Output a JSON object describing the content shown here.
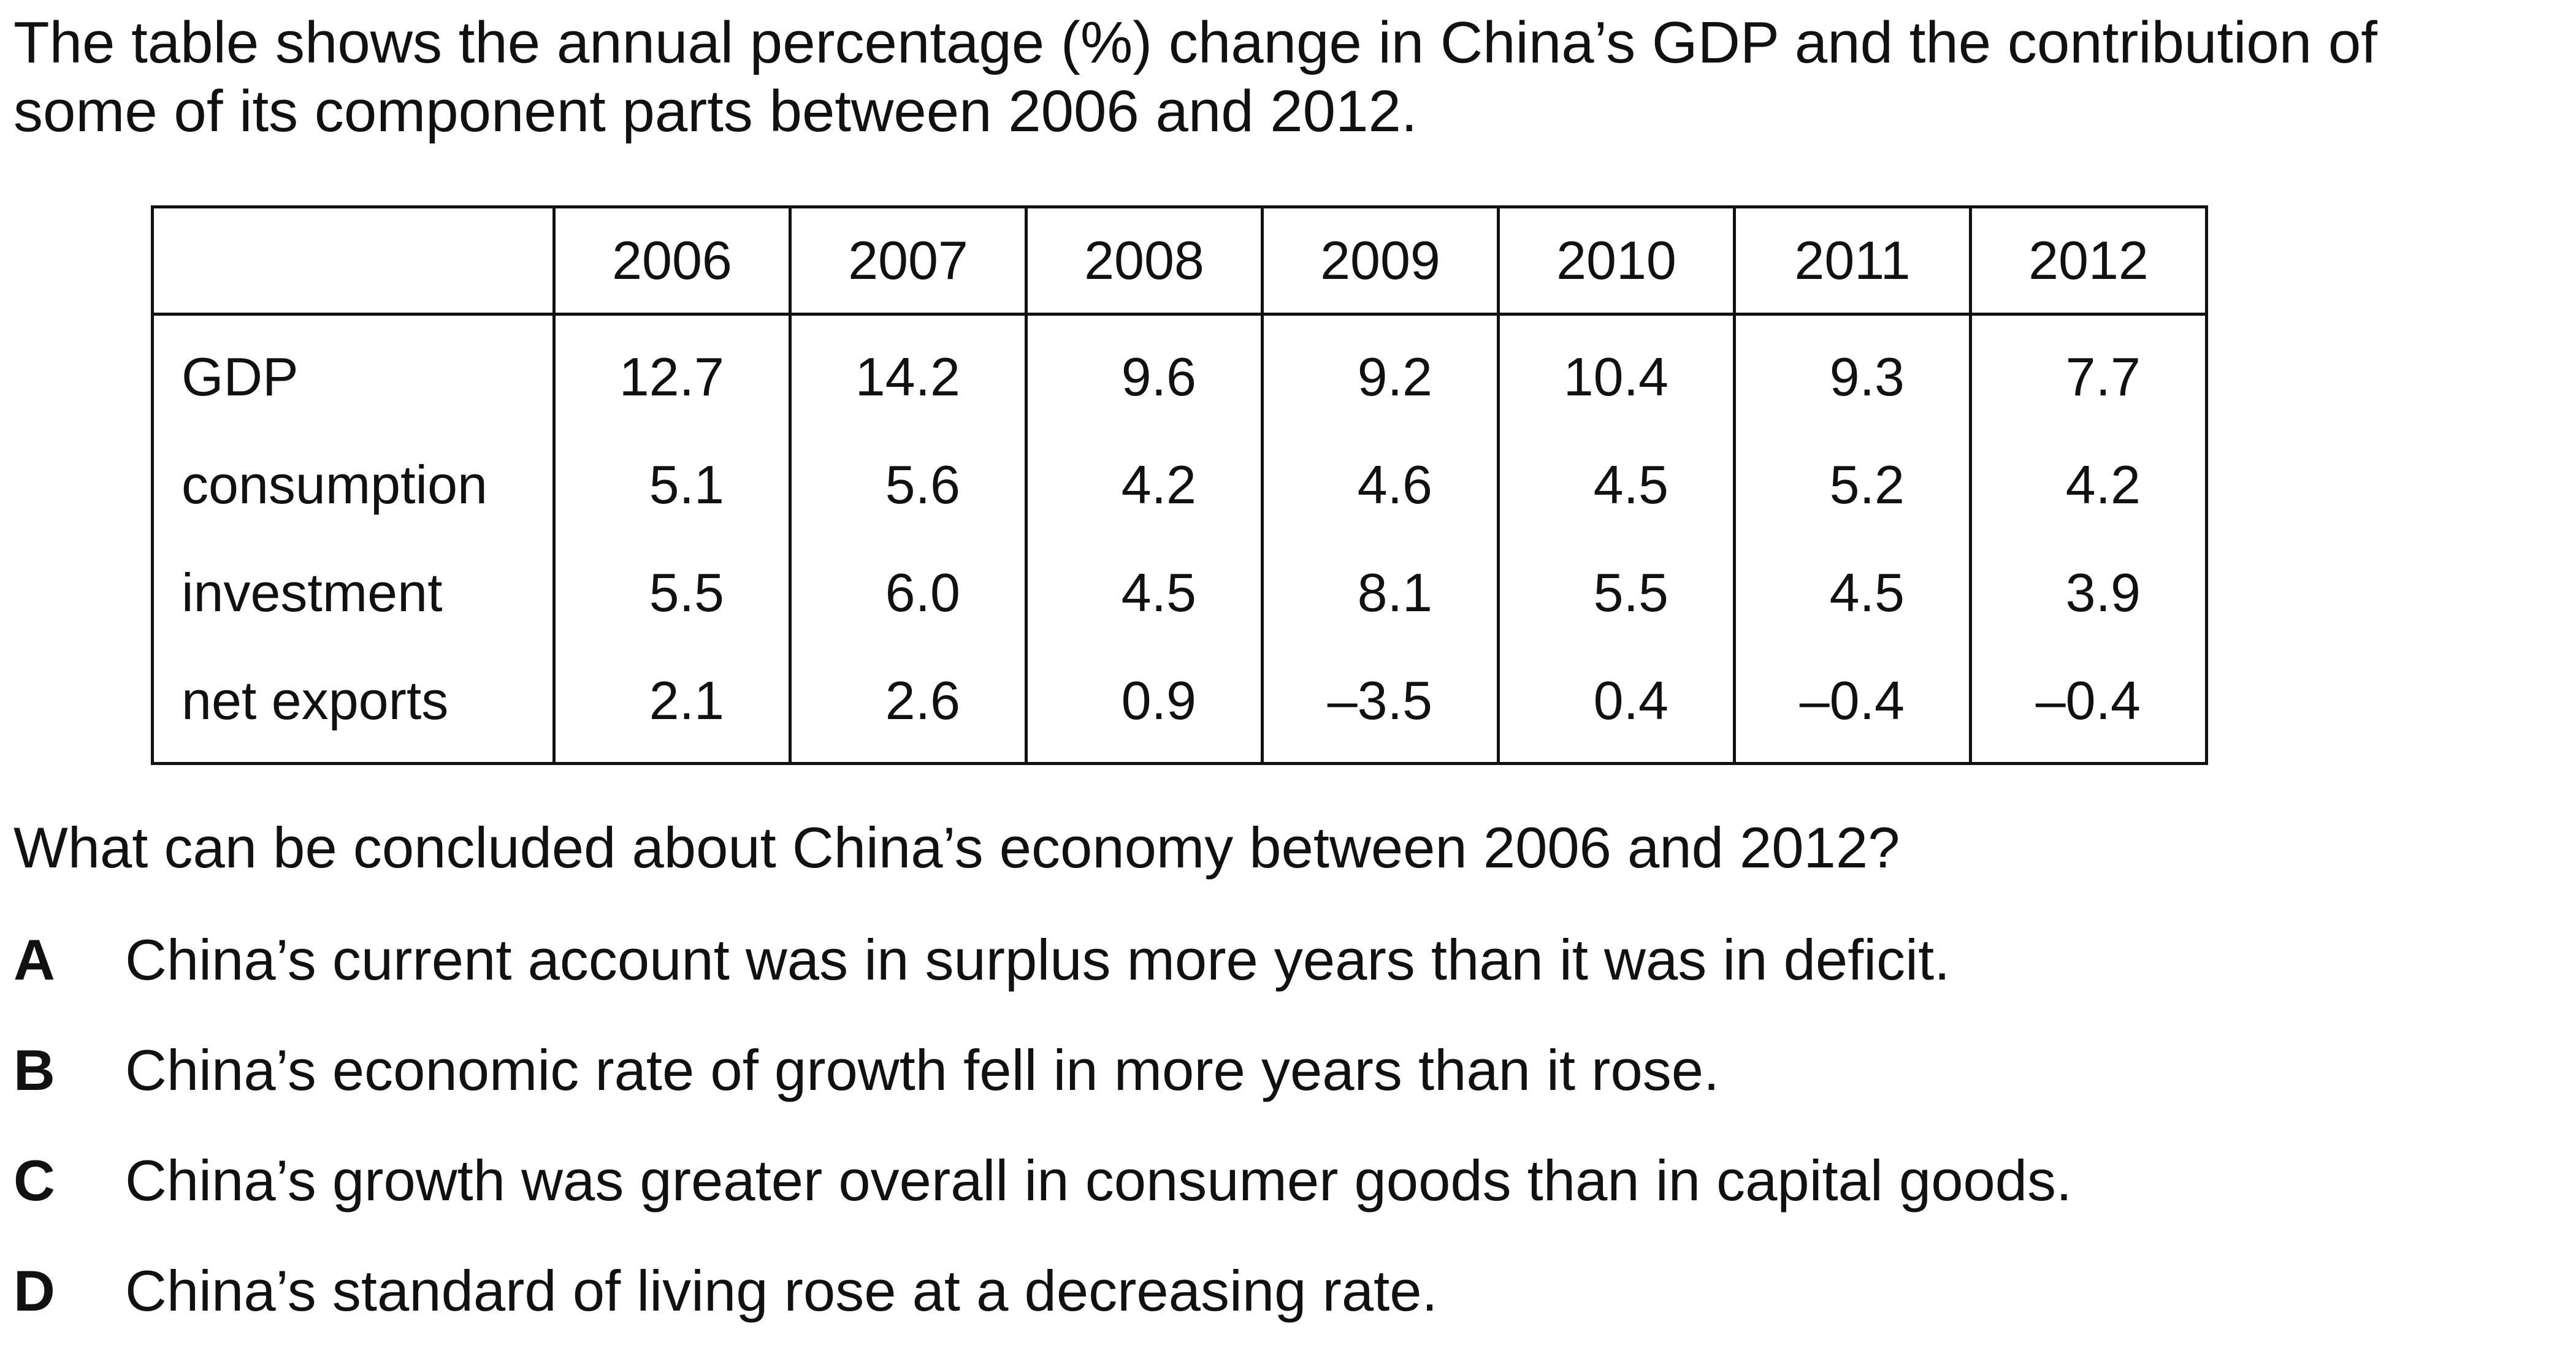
{
  "intro": {
    "text": "The table shows the annual percentage (%) change in China’s GDP and the contribution of some of its component parts between 2006 and 2012."
  },
  "table": {
    "corner_label": "",
    "years": [
      "2006",
      "2007",
      "2008",
      "2009",
      "2010",
      "2011",
      "2012"
    ],
    "rows": [
      {
        "label": "GDP",
        "values": [
          "12.7",
          "14.2",
          "9.6",
          "9.2",
          "10.4",
          "9.3",
          "7.7"
        ]
      },
      {
        "label": "consumption",
        "values": [
          "5.1",
          "5.6",
          "4.2",
          "4.6",
          "4.5",
          "5.2",
          "4.2"
        ]
      },
      {
        "label": "investment",
        "values": [
          "5.5",
          "6.0",
          "4.5",
          "8.1",
          "5.5",
          "4.5",
          "3.9"
        ]
      },
      {
        "label": "net exports",
        "values": [
          "2.1",
          "2.6",
          "0.9",
          "–3.5",
          "0.4",
          "–0.4",
          "–0.4"
        ]
      }
    ]
  },
  "question": {
    "text": "What can be concluded about China’s economy between 2006 and 2012?"
  },
  "options": [
    {
      "letter": "A",
      "text": "China’s current account was in surplus more years than it was in deficit."
    },
    {
      "letter": "B",
      "text": "China’s economic rate of growth fell in more years than it rose."
    },
    {
      "letter": "C",
      "text": "China’s growth was greater overall in consumer goods than in capital goods."
    },
    {
      "letter": "D",
      "text": "China’s standard of living rose at a decreasing rate."
    }
  ]
}
